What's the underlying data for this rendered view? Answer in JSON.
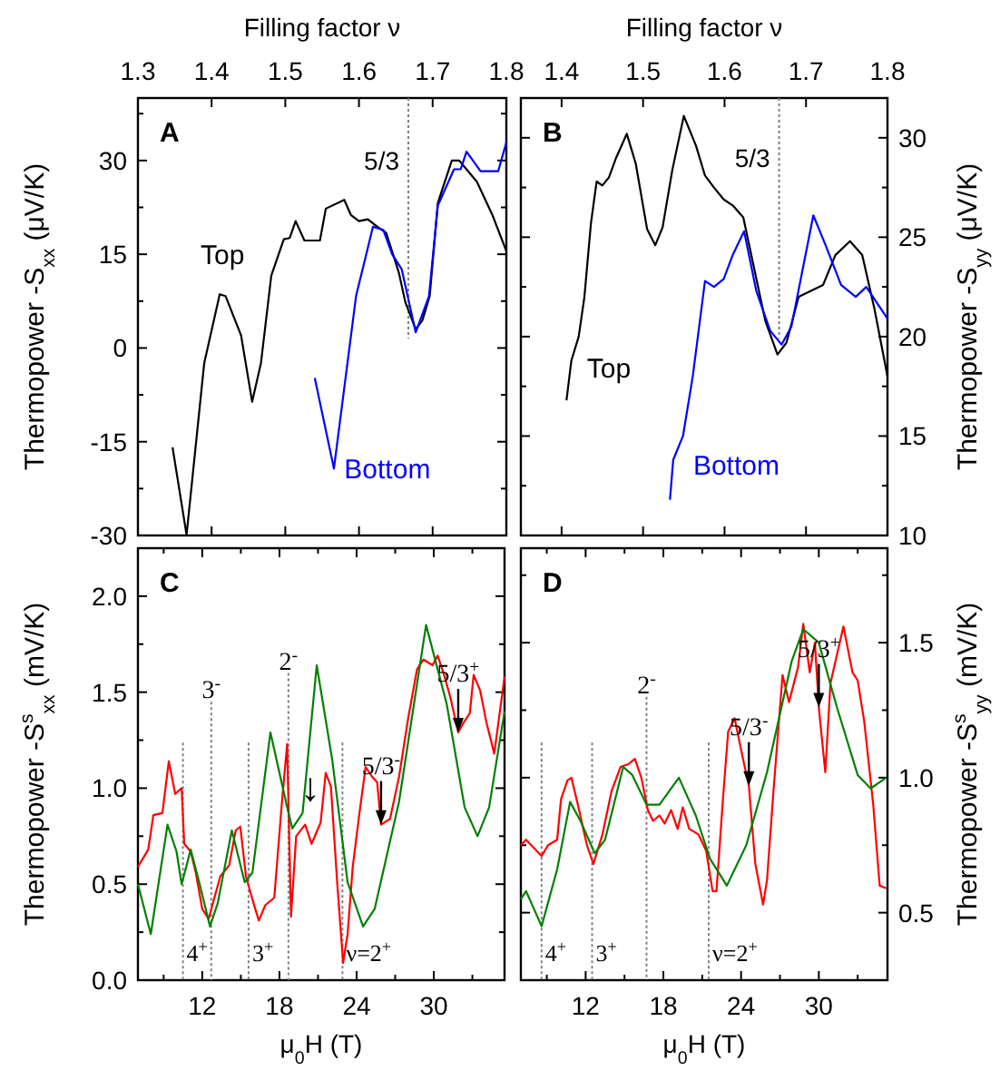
{
  "chart_data": [
    {
      "type": "line",
      "title": "A",
      "xlabel": "Filling factor ν",
      "ylabel": "Thermopower -S$_{xx}$ (μV/K)",
      "xlim": [
        1.3,
        1.8
      ],
      "xticks": [
        1.3,
        1.4,
        1.5,
        1.6,
        1.7,
        1.8
      ],
      "ylim": [
        -30,
        40
      ],
      "yticks": [
        -30,
        {
          "value": -22.5,
          "label": null
        },
        -15,
        {
          "value": -7.5,
          "label": null
        },
        0,
        {
          "value": 7.5,
          "label": null
        },
        15,
        {
          "value": 22.5,
          "label": null
        },
        30,
        {
          "value": 37.5,
          "label": null
        }
      ],
      "series": [
        {
          "name": "Top",
          "color": "#000000",
          "x": [
            1.347,
            1.366,
            1.39,
            1.411,
            1.419,
            1.44,
            1.455,
            1.467,
            1.481,
            1.498,
            1.506,
            1.514,
            1.526,
            1.547,
            1.555,
            1.58,
            1.589,
            1.6,
            1.612,
            1.625,
            1.637,
            1.654,
            1.663,
            1.677,
            1.686,
            1.696,
            1.707,
            1.726,
            1.736,
            1.76,
            1.781,
            1.8
          ],
          "values": [
            -15.9,
            -29.9,
            -2.4,
            8.6,
            8.3,
            2,
            -8.6,
            -2.4,
            11.6,
            17.4,
            17.6,
            20.3,
            17.2,
            17.2,
            22.3,
            23.7,
            21.3,
            20.3,
            20.6,
            19.4,
            18.4,
            12.1,
            7.3,
            3,
            4.4,
            8.3,
            23.2,
            30,
            30,
            26.6,
            21.3,
            15.5
          ]
        },
        {
          "name": "Bottom",
          "color": "#0000ff",
          "x": [
            1.54,
            1.566,
            1.596,
            1.619,
            1.633,
            1.645,
            1.658,
            1.677,
            1.695,
            1.707,
            1.729,
            1.738,
            1.746,
            1.765,
            1.789,
            1.8
          ],
          "values": [
            -4.8,
            -19.3,
            8.3,
            19.4,
            18.9,
            15,
            12.6,
            2.5,
            8.3,
            22.8,
            28.6,
            28.6,
            31.4,
            28.3,
            28.3,
            32.9
          ]
        }
      ],
      "ref_lines": [
        {
          "axis": "x",
          "value": 1.667,
          "line_style": "dotted",
          "color": "#808080"
        }
      ],
      "annotations": [
        {
          "text": "5/3",
          "x": 1.667,
          "y": 30
        }
      ]
    },
    {
      "type": "line",
      "title": "B",
      "xlabel": "Filling factor ν",
      "ylabel": "Thermopower -S$_{yy}$ (μV/K)",
      "xlim": [
        1.35,
        1.8
      ],
      "xticks": [
        1.4,
        1.5,
        1.6,
        1.7,
        1.8
      ],
      "ylim": [
        10,
        32
      ],
      "yticks": [
        10,
        {
          "value": 12.5,
          "label": null
        },
        15,
        {
          "value": 17.5,
          "label": null
        },
        20,
        {
          "value": 22.5,
          "label": null
        },
        25,
        {
          "value": 27.5,
          "label": null
        },
        30
      ],
      "series": [
        {
          "name": "Top",
          "color": "#000000",
          "x": [
            1.406,
            1.412,
            1.421,
            1.428,
            1.436,
            1.443,
            1.45,
            1.458,
            1.467,
            1.48,
            1.491,
            1.505,
            1.515,
            1.524,
            1.536,
            1.55,
            1.565,
            1.576,
            1.587,
            1.599,
            1.61,
            1.623,
            1.636,
            1.65,
            1.665,
            1.676,
            1.691,
            1.706,
            1.721,
            1.736,
            1.754,
            1.769,
            1.784,
            1.8
          ],
          "values": [
            16.8,
            18.8,
            20,
            22,
            25.7,
            27.8,
            27.6,
            28,
            29,
            30.2,
            28.7,
            25.4,
            24.6,
            25.5,
            28.4,
            31.1,
            29.6,
            28.1,
            27.5,
            26.9,
            26.6,
            26,
            23.5,
            20.8,
            19.1,
            19.7,
            22,
            22.3,
            22.6,
            24.1,
            24.8,
            24.1,
            21.4,
            18
          ]
        },
        {
          "name": "Bottom",
          "color": "#0000ff",
          "x": [
            1.533,
            1.537,
            1.549,
            1.561,
            1.576,
            1.587,
            1.599,
            1.61,
            1.624,
            1.639,
            1.656,
            1.67,
            1.682,
            1.709,
            1.724,
            1.743,
            1.761,
            1.774,
            1.8
          ],
          "values": [
            11.8,
            13.8,
            15,
            18,
            22.8,
            22.5,
            22.9,
            24.1,
            25.3,
            22.3,
            20.3,
            19.6,
            20.5,
            26.1,
            24.6,
            22.6,
            22,
            22.5,
            20.9
          ]
        }
      ],
      "ref_lines": [
        {
          "axis": "x",
          "value": 1.667,
          "line_style": "dotted",
          "color": "#808080"
        }
      ],
      "annotations": [
        {
          "text": "5/3",
          "x": 1.667,
          "y": 29
        }
      ]
    },
    {
      "type": "line",
      "title": "C",
      "xlabel": "μ$_{0}$H (T)",
      "ylabel": "Thermopower -S$^{s}$$_{xx}$ (mV/K)",
      "xlim": [
        7,
        35.5
      ],
      "xticks": [
        {
          "value": 9,
          "label": null
        },
        12,
        {
          "value": 15,
          "label": null
        },
        18,
        {
          "value": 21,
          "label": null
        },
        24,
        {
          "value": 27,
          "label": null
        },
        30,
        {
          "value": 33,
          "label": null
        }
      ],
      "ylim": [
        0,
        2.25
      ],
      "yticks": [
        {
          "value": 0,
          "label": "0.0"
        },
        {
          "value": 0.25,
          "label": null
        },
        {
          "value": 0.5,
          "label": "0.5"
        },
        {
          "value": 0.75,
          "label": null
        },
        {
          "value": 1,
          "label": "1.0"
        },
        {
          "value": 1.25,
          "label": null
        },
        {
          "value": 1.5,
          "label": "1.5"
        },
        {
          "value": 1.75,
          "label": null
        },
        {
          "value": 2,
          "label": "2.0"
        }
      ],
      "series": [
        {
          "color": "#ff0000",
          "x": [
            7,
            7.8,
            8.2,
            8.9,
            9.4,
            9.9,
            10.4,
            10.6,
            11.1,
            11.5,
            12,
            12.5,
            13.4,
            14.1,
            14.6,
            14.96,
            15.4,
            15.99,
            16.4,
            16.9,
            17.6,
            18.2,
            18.6,
            18.9,
            19.3,
            20,
            20.5,
            21.2,
            21.6,
            22,
            22.5,
            22.95,
            23.3,
            23.7,
            24.2,
            24.7,
            25.2,
            25.6,
            25.9,
            26.6,
            27.3,
            28,
            28.7,
            29.2,
            29.9,
            30.3,
            30.8,
            31.3,
            31.9,
            32.3,
            32.8,
            33.1,
            33.6,
            34.1,
            34.7,
            35.5
          ],
          "values": [
            0.59,
            0.68,
            0.86,
            0.87,
            1.14,
            0.97,
            1,
            0.71,
            0.67,
            0.56,
            0.37,
            0.32,
            0.54,
            0.6,
            0.78,
            0.8,
            0.54,
            0.4,
            0.31,
            0.39,
            0.43,
            0.93,
            1.23,
            0.33,
            0.75,
            0.81,
            0.71,
            0.82,
            1.08,
            1.01,
            0.5,
            0.09,
            0.24,
            0.59,
            0.86,
            1.11,
            1.06,
            1.03,
            0.81,
            0.84,
            1.06,
            1.36,
            1.62,
            1.67,
            1.64,
            1.69,
            1.59,
            1.47,
            1.29,
            1.34,
            1.39,
            1.59,
            1.51,
            1.34,
            1.18,
            1.58
          ]
        },
        {
          "color": "#008000",
          "x": [
            7,
            8,
            9.3,
            10,
            10.4,
            11.1,
            11.8,
            12.6,
            13.2,
            14.3,
            15.3,
            15.9,
            17.3,
            18.6,
            19,
            19.8,
            20.9,
            22.1,
            23.3,
            24.5,
            25.4,
            27.3,
            29.4,
            31,
            32.4,
            33.4,
            34.3,
            35.5
          ],
          "values": [
            0.5,
            0.24,
            0.81,
            0.67,
            0.5,
            0.68,
            0.5,
            0.28,
            0.4,
            0.78,
            0.51,
            0.56,
            1.29,
            0.9,
            0.79,
            0.87,
            1.64,
            1.15,
            0.51,
            0.28,
            0.37,
            0.93,
            1.85,
            1.44,
            0.9,
            0.75,
            0.9,
            1.4
          ]
        }
      ],
      "ref_lines": [
        {
          "axis": "x",
          "value": 10.5,
          "line_style": "dotted",
          "color": "#808080"
        },
        {
          "axis": "x",
          "value": 12.7,
          "line_style": "dotted",
          "color": "#808080"
        },
        {
          "axis": "x",
          "value": 15.6,
          "line_style": "dotted",
          "color": "#808080"
        },
        {
          "axis": "x",
          "value": 18.7,
          "line_style": "dotted",
          "color": "#808080"
        },
        {
          "axis": "x",
          "value": 22.9,
          "line_style": "dotted",
          "color": "#808080"
        }
      ],
      "annotations": [
        {
          "text": "4$^{+}$",
          "x": 10.5,
          "y": 0.1
        },
        {
          "text": "3$^{-}$",
          "x": 12.7,
          "y": 1.45
        },
        {
          "text": "3$^{+}$",
          "x": 15.6,
          "y": 0.1
        },
        {
          "text": "2$^{-}$",
          "x": 18.7,
          "y": 1.6
        },
        {
          "text": "ν=2$^{+}$",
          "x": 22.9,
          "y": 0.1
        },
        {
          "text": "↓",
          "x": 20.4,
          "y": 0.9
        },
        {
          "text": "5/3$^{-}$",
          "x": 25.9,
          "y": 0.81
        },
        {
          "text": "5/3$^{+}$",
          "x": 31.9,
          "y": 1.29
        }
      ]
    },
    {
      "type": "line",
      "title": "D",
      "xlabel": "μ$_{0}$H (T)",
      "ylabel": "Thermopower -S$^{s}$$_{yy}$ (mV/K)",
      "xlim": [
        7,
        35.3
      ],
      "xticks": [
        {
          "value": 9,
          "label": null
        },
        12,
        {
          "value": 15,
          "label": null
        },
        18,
        {
          "value": 21,
          "label": null
        },
        24,
        {
          "value": 27,
          "label": null
        },
        30,
        {
          "value": 33,
          "label": null
        }
      ],
      "ylim": [
        0.25,
        1.85
      ],
      "yticks": [
        {
          "value": 0.25,
          "label": null
        },
        {
          "value": 0.5,
          "label": "0.5"
        },
        {
          "value": 0.75,
          "label": null
        },
        {
          "value": 1,
          "label": "1.0"
        },
        {
          "value": 1.25,
          "label": null
        },
        {
          "value": 1.5,
          "label": "1.5"
        },
        {
          "value": 1.75,
          "label": null
        }
      ],
      "series": [
        {
          "color": "#ff0000",
          "x": [
            7,
            7.4,
            8,
            8.6,
            9.1,
            9.8,
            10.1,
            10.6,
            10.9,
            11.4,
            12.1,
            12.6,
            13.3,
            14,
            14.7,
            15.3,
            15.8,
            16.3,
            16.8,
            17.2,
            17.7,
            18.1,
            18.6,
            19.1,
            19.5,
            20,
            20.7,
            21.3,
            21.8,
            22.1,
            22.6,
            23,
            23.5,
            24.1,
            24.6,
            25.1,
            25.7,
            26,
            26.5,
            27.2,
            27.7,
            28.4,
            28.8,
            29.3,
            29.7,
            30,
            30.5,
            30.9,
            31.9,
            32.6,
            33,
            33.5,
            34.2,
            34.7,
            35.2
          ],
          "values": [
            0.75,
            0.77,
            0.74,
            0.71,
            0.75,
            0.77,
            0.92,
            0.99,
            1,
            0.9,
            0.75,
            0.68,
            0.79,
            0.95,
            1.04,
            1.05,
            1.07,
            1,
            0.88,
            0.84,
            0.86,
            0.83,
            0.88,
            0.81,
            0.89,
            0.81,
            0.79,
            0.73,
            0.58,
            0.58,
            0.92,
            1.17,
            1.22,
            1.08,
            0.97,
            0.68,
            0.53,
            0.62,
            0.95,
            1.38,
            1.28,
            1.41,
            1.57,
            1.39,
            1.5,
            1.26,
            1.02,
            1.35,
            1.56,
            1.39,
            1.36,
            1.21,
            0.9,
            0.6,
            0.59
          ]
        },
        {
          "color": "#008000",
          "x": [
            7,
            7.4,
            8.6,
            9.8,
            10.8,
            11.6,
            12.7,
            13.5,
            14.9,
            15.6,
            16.7,
            17.7,
            19.2,
            20.5,
            21.6,
            22.9,
            24.4,
            26,
            27.9,
            28.8,
            30,
            31.4,
            33,
            34,
            35.2
          ],
          "values": [
            0.55,
            0.58,
            0.45,
            0.66,
            0.91,
            0.84,
            0.72,
            0.77,
            1.04,
            1.01,
            0.9,
            0.9,
            1,
            0.86,
            0.7,
            0.6,
            0.75,
            1.02,
            1.43,
            1.55,
            1.5,
            1.26,
            1.01,
            0.96,
            1
          ]
        }
      ],
      "ref_lines": [
        {
          "axis": "x",
          "value": 8.6,
          "line_style": "dotted",
          "color": "#808080"
        },
        {
          "axis": "x",
          "value": 12.5,
          "line_style": "dotted",
          "color": "#808080"
        },
        {
          "axis": "x",
          "value": 16.7,
          "line_style": "dotted",
          "color": "#808080"
        },
        {
          "axis": "x",
          "value": 21.5,
          "line_style": "dotted",
          "color": "#808080"
        }
      ],
      "annotations": [
        {
          "text": "4$^{+}$",
          "x": 8.6,
          "y": 0.32
        },
        {
          "text": "3$^{+}$",
          "x": 12.5,
          "y": 0.32
        },
        {
          "text": "2$^{-}$",
          "x": 16.7,
          "y": 1.3
        },
        {
          "text": "ν=2$^{+}$",
          "x": 21.5,
          "y": 0.32
        },
        {
          "text": "5/3$^{-}$",
          "x": 24.6,
          "y": 0.97
        },
        {
          "text": "5/3$^{+}$",
          "x": 30,
          "y": 1.26
        }
      ]
    }
  ]
}
